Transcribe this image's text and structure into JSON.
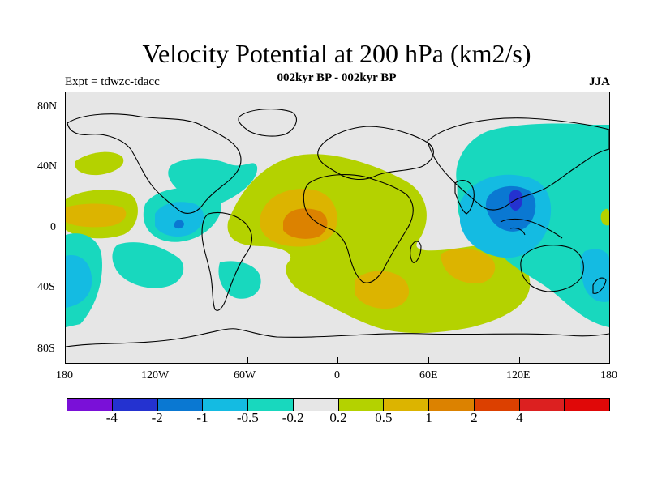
{
  "title": "Velocity Potential at 200 hPa (km2/s)",
  "subtitle": "002kyr BP - 002kyr BP",
  "experiment": "Expt = tdwzc-tdacc",
  "season": "JJA",
  "axes": {
    "longitude_labels": [
      "180",
      "120W",
      "60W",
      "0",
      "60E",
      "120E",
      "180"
    ],
    "latitude_labels": [
      "80N",
      "40N",
      "0",
      "40S",
      "80S"
    ]
  },
  "colorbar": {
    "colors": [
      "#7a10d8",
      "#2432d0",
      "#0a78d2",
      "#14bbe2",
      "#18d8be",
      "#e6e6e6",
      "#b4d200",
      "#dcb400",
      "#dc8200",
      "#dc4000",
      "#dc2020",
      "#e00808"
    ],
    "labels": [
      "-4",
      "-2",
      "-1",
      "-0.5",
      "-0.2",
      "0.2",
      "0.5",
      "1",
      "2",
      "4"
    ]
  },
  "map_regions": [
    {
      "name": "Pacific eastern positive",
      "level": "0.5"
    },
    {
      "name": "Atlantic-Africa positive",
      "level": "0.5"
    },
    {
      "name": "Gulf of Guinea maximum",
      "level": "2"
    },
    {
      "name": "Southern Indian Ocean positive",
      "level": "1"
    },
    {
      "name": "Western Pacific negative",
      "level": "-1"
    },
    {
      "name": "Maritime Continent minimum",
      "level": "-2"
    },
    {
      "name": "Eastern Pacific negative",
      "level": "-1"
    }
  ]
}
